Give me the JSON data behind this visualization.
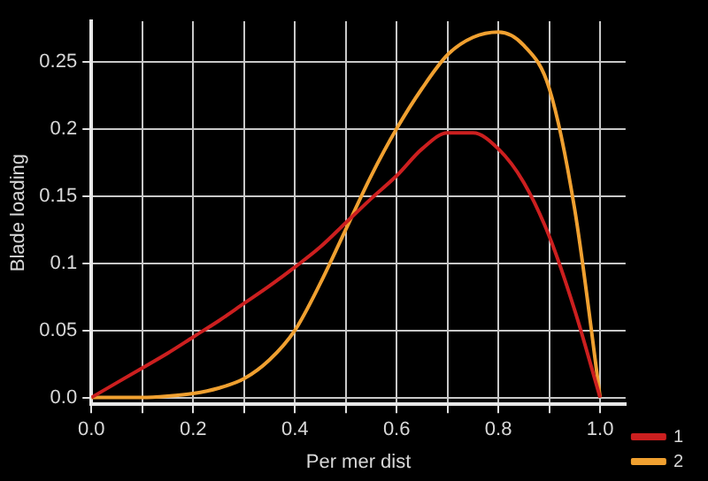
{
  "chart_data": {
    "type": "line",
    "xlabel": "Per mer dist",
    "ylabel": "Blade loading",
    "x": [
      0,
      0.1,
      0.15,
      0.2,
      0.25,
      0.3,
      0.35,
      0.4,
      0.45,
      0.5,
      0.55,
      0.6,
      0.65,
      0.7,
      0.75,
      0.8,
      0.85,
      0.9,
      0.95,
      1.0
    ],
    "series": [
      {
        "name": "1",
        "color": "#cc1f1f",
        "values": [
          0,
          0.022,
          0.033,
          0.045,
          0.057,
          0.07,
          0.083,
          0.097,
          0.112,
          0.13,
          0.148,
          0.165,
          0.185,
          0.197,
          0.197,
          0.185,
          0.16,
          0.12,
          0.065,
          0
        ]
      },
      {
        "name": "2",
        "color": "#f0a030",
        "values": [
          0,
          0,
          0.001,
          0.003,
          0.007,
          0.014,
          0.028,
          0.05,
          0.085,
          0.125,
          0.165,
          0.2,
          0.23,
          0.255,
          0.268,
          0.272,
          0.262,
          0.23,
          0.14,
          0
        ]
      }
    ],
    "xlim": [
      0,
      1.05
    ],
    "ylim": [
      -0.005,
      0.28
    ],
    "xticks": [
      {
        "value": 0,
        "label": "0.0"
      },
      {
        "value": 0.1,
        "label": null
      },
      0.2,
      {
        "value": 0.3,
        "label": null
      },
      0.4,
      {
        "value": 0.5,
        "label": null
      },
      0.6,
      {
        "value": 0.7,
        "label": null
      },
      0.8,
      {
        "value": 0.9,
        "label": null
      },
      {
        "value": 1,
        "label": "1.0"
      }
    ],
    "yticks": [
      {
        "value": 0,
        "label": "0.0"
      },
      0.05,
      0.1,
      0.15,
      0.2,
      0.25
    ],
    "grid": true,
    "legend": "bottom right",
    "marker": "none",
    "line_style": "solid"
  }
}
